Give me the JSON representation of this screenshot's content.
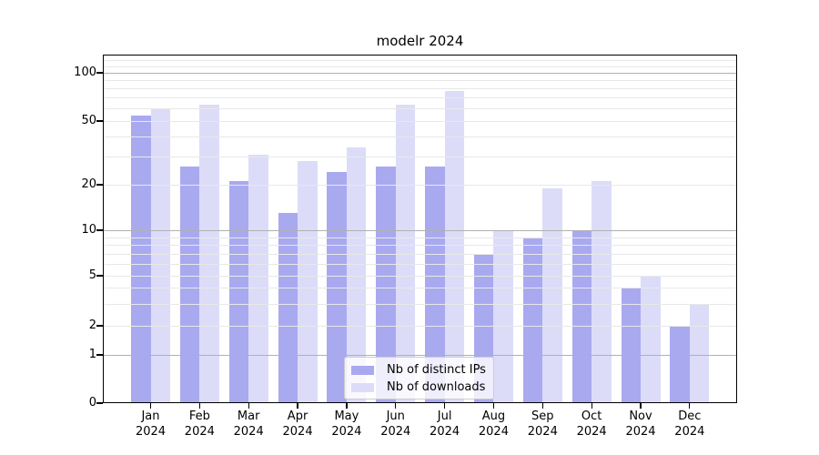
{
  "title": "modelr 2024",
  "chart_data": {
    "type": "bar",
    "title": "modelr 2024",
    "categories": [
      "Jan",
      "Feb",
      "Mar",
      "Apr",
      "May",
      "Jun",
      "Jul",
      "Aug",
      "Sep",
      "Oct",
      "Nov",
      "Dec"
    ],
    "category_sublabel": "2024",
    "series": [
      {
        "name": "Nb of distinct IPs",
        "color": "#a9a9f0",
        "values": [
          54,
          26,
          21,
          13,
          24,
          26,
          26,
          7,
          9,
          10,
          4,
          2
        ]
      },
      {
        "name": "Nb of downloads",
        "color": "#dcdcf9",
        "values": [
          60,
          63,
          31,
          28,
          34,
          63,
          77,
          10,
          19,
          21,
          5,
          3
        ]
      }
    ],
    "yscale": "asinh (log above 1, linear 0-1)",
    "ylim": [
      0,
      130
    ],
    "ytick_labels": [
      "0",
      "1",
      "2",
      "5",
      "10",
      "20",
      "50",
      "100"
    ],
    "ytick_values": [
      0,
      1,
      2,
      5,
      10,
      20,
      50,
      100
    ],
    "major_gridline_values": [
      1,
      10,
      100
    ],
    "minor_gridline_values": [
      2,
      3,
      4,
      5,
      6,
      7,
      8,
      9,
      20,
      30,
      40,
      50,
      60,
      70,
      80,
      90,
      110,
      120
    ],
    "grid": true,
    "legend": {
      "position": "lower center",
      "entries": [
        "Nb of distinct IPs",
        "Nb of downloads"
      ]
    },
    "colors": {
      "frame": "#000000",
      "major_grid": "#b0b0b0",
      "minor_grid": "#e8e8e8"
    }
  }
}
